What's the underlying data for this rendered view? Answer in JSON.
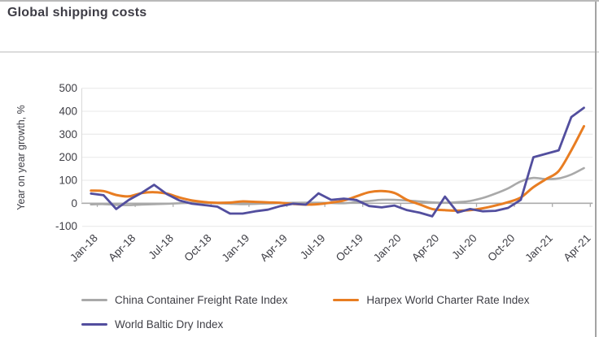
{
  "window": {
    "title": "Global shipping costs"
  },
  "colors": {
    "ccfi_gray": "#A9A9A9",
    "harpex_orange": "#E87D22",
    "baltic_purple": "#524E9E",
    "grid": "#EDEDED",
    "axis": "#ABABAB",
    "text": "#3F3F46"
  },
  "chart_data": {
    "type": "line",
    "title": "Global shipping costs",
    "xlabel": "",
    "ylabel": "Year on year growth, %",
    "ylim": [
      -100,
      500
    ],
    "yticks": [
      -100,
      0,
      100,
      200,
      300,
      400,
      500
    ],
    "grid": "horizontal",
    "legend_position": "bottom",
    "x_tick_labels": [
      "Jan-18",
      "Apr-18",
      "Jul-18",
      "Oct-18",
      "Jan-19",
      "Apr-19",
      "Jul-19",
      "Oct-19",
      "Jan-20",
      "Apr-20",
      "Jul-20",
      "Oct-20",
      "Jan-21",
      "Apr-21"
    ],
    "x": [
      "Jan-18",
      "Feb-18",
      "Mar-18",
      "Apr-18",
      "May-18",
      "Jun-18",
      "Jul-18",
      "Aug-18",
      "Sep-18",
      "Oct-18",
      "Nov-18",
      "Dec-18",
      "Jan-19",
      "Feb-19",
      "Mar-19",
      "Apr-19",
      "May-19",
      "Jun-19",
      "Jul-19",
      "Aug-19",
      "Sep-19",
      "Oct-19",
      "Nov-19",
      "Dec-19",
      "Jan-20",
      "Feb-20",
      "Mar-20",
      "Apr-20",
      "May-20",
      "Jun-20",
      "Jul-20",
      "Aug-20",
      "Sep-20",
      "Oct-20",
      "Nov-20",
      "Dec-20",
      "Jan-21",
      "Feb-21",
      "Mar-21",
      "Apr-21"
    ],
    "series": [
      {
        "name": "China Container Freight Rate Index",
        "color": "#A9A9A9",
        "smooth": true,
        "width": 2.6,
        "values": [
          -5,
          -4,
          -7,
          -8,
          -6,
          -4,
          -2,
          0,
          2,
          2,
          0,
          -2,
          -4,
          -3,
          -1,
          1,
          2,
          3,
          2,
          1,
          0,
          5,
          10,
          15,
          15,
          12,
          8,
          4,
          2,
          5,
          10,
          23,
          42,
          65,
          95,
          110,
          105,
          108,
          125,
          153
        ]
      },
      {
        "name": "Harpex World Charter Rate Index",
        "color": "#E87D22",
        "smooth": true,
        "width": 3,
        "values": [
          55,
          53,
          36,
          30,
          44,
          48,
          42,
          25,
          12,
          5,
          2,
          3,
          8,
          6,
          4,
          2,
          -3,
          -6,
          -4,
          3,
          12,
          30,
          48,
          53,
          45,
          15,
          -5,
          -25,
          -30,
          -32,
          -30,
          -22,
          -10,
          5,
          25,
          70,
          105,
          140,
          230,
          335
        ]
      },
      {
        "name": "World Baltic Dry Index",
        "color": "#524E9E",
        "smooth": false,
        "width": 2.8,
        "values": [
          42,
          35,
          -25,
          15,
          45,
          80,
          40,
          12,
          -2,
          -8,
          -15,
          -45,
          -45,
          -35,
          -28,
          -12,
          -2,
          -6,
          43,
          15,
          20,
          14,
          -12,
          -18,
          -10,
          -30,
          -41,
          -57,
          29,
          -40,
          -25,
          -35,
          -33,
          -20,
          15,
          200,
          215,
          230,
          375,
          415
        ]
      }
    ]
  }
}
